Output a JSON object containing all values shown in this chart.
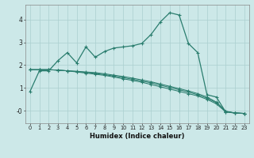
{
  "x": [
    0,
    1,
    2,
    3,
    4,
    5,
    6,
    7,
    8,
    9,
    10,
    11,
    12,
    13,
    14,
    15,
    16,
    17,
    18,
    19,
    20,
    21,
    22,
    23
  ],
  "main_line": [
    0.85,
    1.75,
    1.75,
    2.2,
    2.55,
    2.1,
    2.8,
    2.35,
    2.6,
    2.75,
    2.8,
    2.85,
    2.95,
    3.35,
    3.9,
    4.3,
    4.2,
    2.95,
    2.55,
    0.7,
    0.6,
    -0.05,
    -0.1,
    -0.12
  ],
  "line2": [
    1.8,
    1.8,
    1.8,
    1.78,
    1.75,
    1.7,
    1.65,
    1.6,
    1.55,
    1.48,
    1.4,
    1.33,
    1.25,
    1.15,
    1.05,
    0.95,
    0.85,
    0.75,
    0.65,
    0.5,
    0.3,
    -0.05,
    -0.1,
    -0.12
  ],
  "line3": [
    1.8,
    1.8,
    1.8,
    1.78,
    1.75,
    1.72,
    1.68,
    1.64,
    1.58,
    1.52,
    1.45,
    1.38,
    1.3,
    1.22,
    1.12,
    1.02,
    0.92,
    0.82,
    0.7,
    0.55,
    0.35,
    -0.03,
    -0.1,
    -0.12
  ],
  "line4": [
    1.8,
    1.8,
    1.8,
    1.78,
    1.75,
    1.73,
    1.7,
    1.67,
    1.62,
    1.56,
    1.5,
    1.43,
    1.35,
    1.27,
    1.17,
    1.07,
    0.97,
    0.87,
    0.75,
    0.6,
    0.38,
    -0.02,
    -0.1,
    -0.12
  ],
  "line_color": "#2a7d6e",
  "background_color": "#cce8e8",
  "grid_color": "#aacfcf",
  "xlabel": "Humidex (Indice chaleur)",
  "xlim": [
    -0.5,
    23.5
  ],
  "ylim": [
    -0.55,
    4.65
  ],
  "yticks": [
    0,
    1,
    2,
    3,
    4
  ],
  "ytick_labels": [
    "-0",
    "1",
    "2",
    "3",
    "4"
  ],
  "xticks": [
    0,
    1,
    2,
    3,
    4,
    5,
    6,
    7,
    8,
    9,
    10,
    11,
    12,
    13,
    14,
    15,
    16,
    17,
    18,
    19,
    20,
    21,
    22,
    23
  ]
}
